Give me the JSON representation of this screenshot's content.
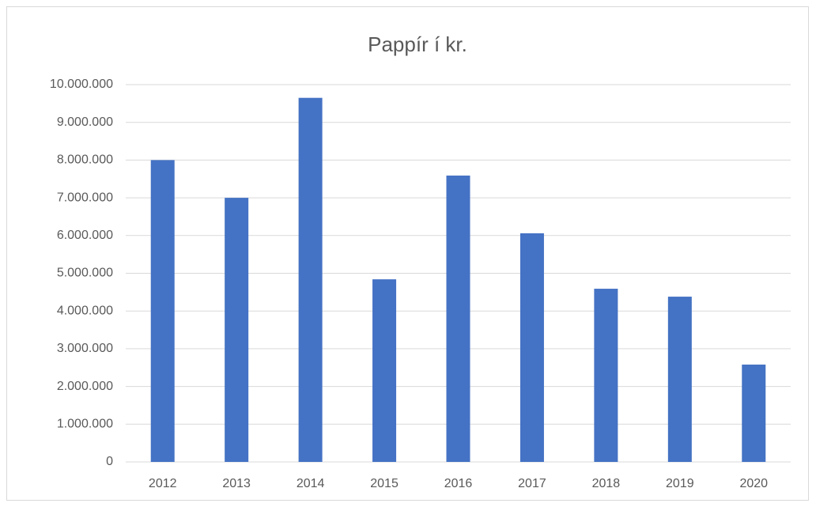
{
  "chart_data": {
    "type": "bar",
    "title": "Pappír í kr.",
    "categories": [
      "2012",
      "2013",
      "2014",
      "2015",
      "2016",
      "2017",
      "2018",
      "2019",
      "2020"
    ],
    "values": [
      8000000,
      7000000,
      9650000,
      4840000,
      7590000,
      6060000,
      4590000,
      4380000,
      2580000
    ],
    "color": "#4472c4",
    "ylim": [
      0,
      10000000
    ],
    "yticks": [
      0,
      {
        "value": 1000000,
        "label": "1.000.000"
      },
      {
        "value": 2000000,
        "label": "2.000.000"
      },
      {
        "value": 3000000,
        "label": "3.000.000"
      },
      {
        "value": 4000000,
        "label": "4.000.000"
      },
      {
        "value": 5000000,
        "label": "5.000.000"
      },
      {
        "value": 6000000,
        "label": "6.000.000"
      },
      {
        "value": 7000000,
        "label": "7.000.000"
      },
      {
        "value": 8000000,
        "label": "8.000.000"
      },
      {
        "value": 9000000,
        "label": "9.000.000"
      },
      {
        "value": 10000000,
        "label": "10.000.000"
      }
    ],
    "grid": true
  }
}
